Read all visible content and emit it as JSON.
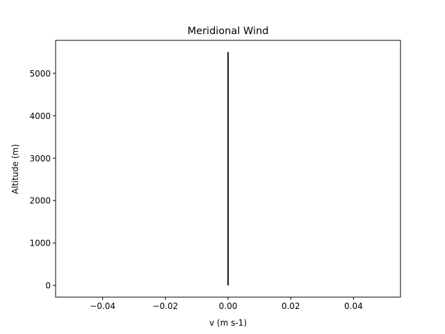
{
  "chart_data": {
    "type": "line",
    "title": "Meridional Wind",
    "xlabel": "v (m s-1)",
    "ylabel": "Altitude (m)",
    "xlim": [
      -0.055,
      0.055
    ],
    "ylim": [
      -275,
      5775
    ],
    "xticks": [
      -0.04,
      -0.02,
      0.0,
      0.02,
      0.04
    ],
    "xtick_labels": [
      "−0.04",
      "−0.02",
      "0.00",
      "0.02",
      "0.04"
    ],
    "yticks": [
      0,
      1000,
      2000,
      3000,
      4000,
      5000
    ],
    "ytick_labels": [
      "0",
      "1000",
      "2000",
      "3000",
      "4000",
      "5000"
    ],
    "grid": false,
    "series": [
      {
        "color": "#000000",
        "x": [
          0,
          0
        ],
        "y": [
          0,
          5500
        ]
      }
    ]
  }
}
